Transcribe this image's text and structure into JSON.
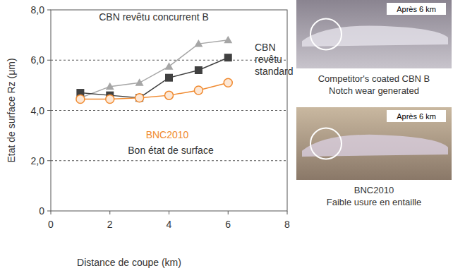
{
  "chart_data": {
    "type": "line",
    "x_label": "Distance de coupe (km)",
    "y_label": "Etat de surface Rz (μm)",
    "x": [
      1,
      2,
      3,
      4,
      5,
      6
    ],
    "series": [
      {
        "name": "CBN revêtu concurrent B",
        "color": "#a6a6a6",
        "marker": "triangle",
        "values": [
          4.5,
          4.95,
          5.1,
          5.75,
          6.65,
          6.8
        ]
      },
      {
        "name": "CBN revêtu standard",
        "color": "#404040",
        "marker": "square",
        "values": [
          4.7,
          4.6,
          4.5,
          5.3,
          5.6,
          6.1
        ]
      },
      {
        "name": "BNC2010",
        "color": "#f08a30",
        "marker": "circle",
        "values": [
          4.45,
          4.45,
          4.5,
          4.6,
          4.8,
          5.1
        ]
      }
    ],
    "annotations": [
      "Bon état de surface"
    ],
    "xlim": [
      0,
      8
    ],
    "xticks": [
      0,
      2,
      4,
      6,
      8
    ],
    "ylim": [
      0,
      8
    ],
    "yticks": [
      0,
      {
        "value": 2,
        "label": "2,0"
      },
      {
        "value": 4,
        "label": "4,0"
      },
      {
        "value": 6,
        "label": "6,0"
      },
      {
        "value": 8,
        "label": "8,0"
      }
    ],
    "grid": true
  },
  "panels": [
    {
      "badge": "Après 6 km",
      "caption": [
        "Competitor's coated CBN B",
        "Notch wear generated"
      ]
    },
    {
      "badge": "Après 6 km",
      "caption": [
        "BNC2010",
        "Faible usure en entaille"
      ]
    }
  ]
}
